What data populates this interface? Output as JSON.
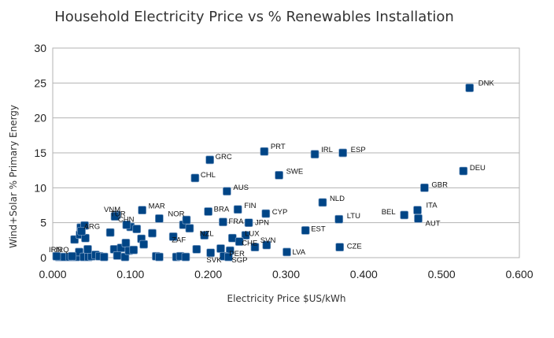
{
  "chart_data": {
    "type": "scatter",
    "title": "Household Electricity Price vs % Renewables Installation",
    "xlabel": "Electricity Price $US/kWh",
    "ylabel": "Wind+Solar % Primary Energy",
    "xlim": [
      0,
      0.6
    ],
    "ylim": [
      0,
      30
    ],
    "xticks": [
      "0.000",
      "0.100",
      "0.200",
      "0.300",
      "0.400",
      "0.500",
      "0.600"
    ],
    "yticks": [
      "0",
      "5",
      "10",
      "15",
      "20",
      "25",
      "30"
    ],
    "grid": "horizontal",
    "marker_color": "#004586",
    "points": [
      {
        "label": "DNK",
        "x": 0.536,
        "y": 24.3
      },
      {
        "label": "PRT",
        "x": 0.272,
        "y": 15.2
      },
      {
        "label": "IRL",
        "x": 0.337,
        "y": 14.8
      },
      {
        "label": "ESP",
        "x": 0.373,
        "y": 15.0
      },
      {
        "label": "GRC",
        "x": 0.202,
        "y": 14.0
      },
      {
        "label": "DEU",
        "x": 0.528,
        "y": 12.4
      },
      {
        "label": "SWE",
        "x": 0.291,
        "y": 11.8
      },
      {
        "label": "CHL",
        "x": 0.183,
        "y": 11.4
      },
      {
        "label": "GBR",
        "x": 0.478,
        "y": 10.0
      },
      {
        "label": "AUS",
        "x": 0.224,
        "y": 9.5
      },
      {
        "label": "NLD",
        "x": 0.347,
        "y": 7.9
      },
      {
        "label": "ITA",
        "x": 0.469,
        "y": 6.8
      },
      {
        "label": "BEL",
        "x": 0.452,
        "y": 6.1
      },
      {
        "label": "AUT",
        "x": 0.47,
        "y": 5.6
      },
      {
        "label": "LTU",
        "x": 0.368,
        "y": 5.5
      },
      {
        "label": "CYP",
        "x": 0.274,
        "y": 6.3
      },
      {
        "label": "FIN",
        "x": 0.238,
        "y": 6.9
      },
      {
        "label": "BRA",
        "x": 0.2,
        "y": 6.6
      },
      {
        "label": "MAR",
        "x": 0.115,
        "y": 6.8
      },
      {
        "label": "VNM",
        "x": 0.082,
        "y": 6.1
      },
      {
        "label": "TUR",
        "x": 0.08,
        "y": 5.9
      },
      {
        "label": "CHN",
        "x": 0.095,
        "y": 4.7
      },
      {
        "label": "NOR",
        "x": 0.137,
        "y": 5.6
      },
      {
        "label": "FRA",
        "x": 0.219,
        "y": 5.1
      },
      {
        "label": "JPN",
        "x": 0.252,
        "y": 5.0
      },
      {
        "label": "EST",
        "x": 0.325,
        "y": 3.9
      },
      {
        "label": "ARG",
        "x": 0.037,
        "y": 3.8
      },
      {
        "label": "LUX",
        "x": 0.248,
        "y": 3.2
      },
      {
        "label": "NZL",
        "x": 0.195,
        "y": 3.2
      },
      {
        "label": "ZAF",
        "x": 0.155,
        "y": 3.0
      },
      {
        "label": "CHE",
        "x": 0.24,
        "y": 2.3
      },
      {
        "label": "SVN",
        "x": 0.275,
        "y": 1.8
      },
      {
        "label": "CZE",
        "x": 0.369,
        "y": 1.5
      },
      {
        "label": "PER",
        "x": 0.228,
        "y": 1.0
      },
      {
        "label": "LVA",
        "x": 0.301,
        "y": 0.8
      },
      {
        "label": "SVK",
        "x": 0.22,
        "y": 0.2
      },
      {
        "label": "SGP",
        "x": 0.226,
        "y": 0.1
      },
      {
        "label": "IRN",
        "x": 0.005,
        "y": 0.2
      },
      {
        "label": "IRQ",
        "x": 0.025,
        "y": 0.2
      }
    ],
    "unlabeled_points": [
      {
        "x": 0.008,
        "y": 0.1
      },
      {
        "x": 0.015,
        "y": 0.1
      },
      {
        "x": 0.022,
        "y": 0.1
      },
      {
        "x": 0.03,
        "y": 0.1
      },
      {
        "x": 0.034,
        "y": 0.8
      },
      {
        "x": 0.04,
        "y": 0.1
      },
      {
        "x": 0.046,
        "y": 0.1
      },
      {
        "x": 0.05,
        "y": 0.2
      },
      {
        "x": 0.055,
        "y": 0.4
      },
      {
        "x": 0.06,
        "y": 0.2
      },
      {
        "x": 0.066,
        "y": 0.1
      },
      {
        "x": 0.028,
        "y": 2.6
      },
      {
        "x": 0.035,
        "y": 3.3
      },
      {
        "x": 0.042,
        "y": 2.8
      },
      {
        "x": 0.036,
        "y": 4.3
      },
      {
        "x": 0.041,
        "y": 4.6
      },
      {
        "x": 0.045,
        "y": 1.2
      },
      {
        "x": 0.074,
        "y": 3.6
      },
      {
        "x": 0.079,
        "y": 1.2
      },
      {
        "x": 0.083,
        "y": 0.3
      },
      {
        "x": 0.088,
        "y": 1.4
      },
      {
        "x": 0.093,
        "y": 0.1
      },
      {
        "x": 0.094,
        "y": 2.1
      },
      {
        "x": 0.098,
        "y": 1.0
      },
      {
        "x": 0.1,
        "y": 4.4
      },
      {
        "x": 0.104,
        "y": 1.1
      },
      {
        "x": 0.108,
        "y": 4.1
      },
      {
        "x": 0.114,
        "y": 2.7
      },
      {
        "x": 0.117,
        "y": 1.9
      },
      {
        "x": 0.128,
        "y": 3.5
      },
      {
        "x": 0.133,
        "y": 0.2
      },
      {
        "x": 0.137,
        "y": 0.1
      },
      {
        "x": 0.159,
        "y": 0.1
      },
      {
        "x": 0.164,
        "y": 0.2
      },
      {
        "x": 0.168,
        "y": 4.7
      },
      {
        "x": 0.171,
        "y": 0.1
      },
      {
        "x": 0.172,
        "y": 5.4
      },
      {
        "x": 0.176,
        "y": 4.2
      },
      {
        "x": 0.185,
        "y": 1.2
      },
      {
        "x": 0.203,
        "y": 0.7
      },
      {
        "x": 0.216,
        "y": 1.3
      },
      {
        "x": 0.231,
        "y": 2.8
      },
      {
        "x": 0.26,
        "y": 1.5
      }
    ]
  }
}
